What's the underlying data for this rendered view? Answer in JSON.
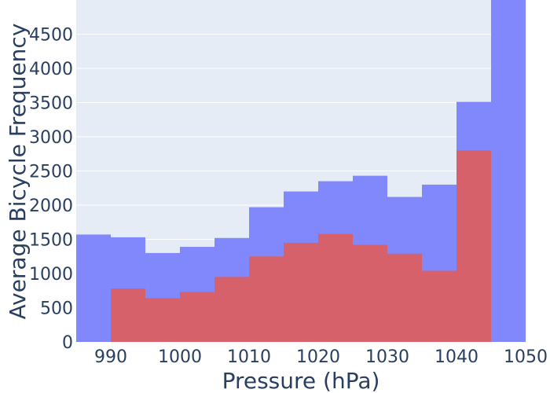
{
  "chart_data": {
    "type": "bar",
    "barmode": "overlay",
    "xlabel": "Pressure (hPa)",
    "ylabel": "Average Bicycle Frequency",
    "xlim": [
      985,
      1050
    ],
    "ylim": [
      0,
      5000
    ],
    "x_ticks": [
      990,
      1000,
      1010,
      1020,
      1030,
      1040,
      1050
    ],
    "y_ticks": [
      0,
      500,
      1000,
      1500,
      2000,
      2500,
      3000,
      3500,
      4000,
      4500
    ],
    "grid": true,
    "series": [
      {
        "color": "#8088fb",
        "bins": [
          {
            "x0": 985,
            "x1": 990,
            "value": 1570
          },
          {
            "x0": 990,
            "x1": 995,
            "value": 1530
          },
          {
            "x0": 995,
            "x1": 1000,
            "value": 1300
          },
          {
            "x0": 1000,
            "x1": 1005,
            "value": 1390
          },
          {
            "x0": 1005,
            "x1": 1010,
            "value": 1520
          },
          {
            "x0": 1010,
            "x1": 1015,
            "value": 1970
          },
          {
            "x0": 1015,
            "x1": 1020,
            "value": 2200
          },
          {
            "x0": 1020,
            "x1": 1025,
            "value": 2350
          },
          {
            "x0": 1025,
            "x1": 1030,
            "value": 2430
          },
          {
            "x0": 1030,
            "x1": 1035,
            "value": 2120
          },
          {
            "x0": 1035,
            "x1": 1040,
            "value": 2300
          },
          {
            "x0": 1040,
            "x1": 1045,
            "value": 3510
          },
          {
            "x0": 1045,
            "x1": 1050,
            "value": 5000
          }
        ]
      },
      {
        "color": "#d6616b",
        "bins": [
          {
            "x0": 990,
            "x1": 995,
            "value": 780
          },
          {
            "x0": 995,
            "x1": 1000,
            "value": 640
          },
          {
            "x0": 1000,
            "x1": 1005,
            "value": 730
          },
          {
            "x0": 1005,
            "x1": 1010,
            "value": 950
          },
          {
            "x0": 1010,
            "x1": 1015,
            "value": 1250
          },
          {
            "x0": 1015,
            "x1": 1020,
            "value": 1450
          },
          {
            "x0": 1020,
            "x1": 1025,
            "value": 1580
          },
          {
            "x0": 1025,
            "x1": 1030,
            "value": 1420
          },
          {
            "x0": 1030,
            "x1": 1035,
            "value": 1290
          },
          {
            "x0": 1035,
            "x1": 1040,
            "value": 1040
          },
          {
            "x0": 1040,
            "x1": 1045,
            "value": 2800
          }
        ]
      }
    ]
  }
}
